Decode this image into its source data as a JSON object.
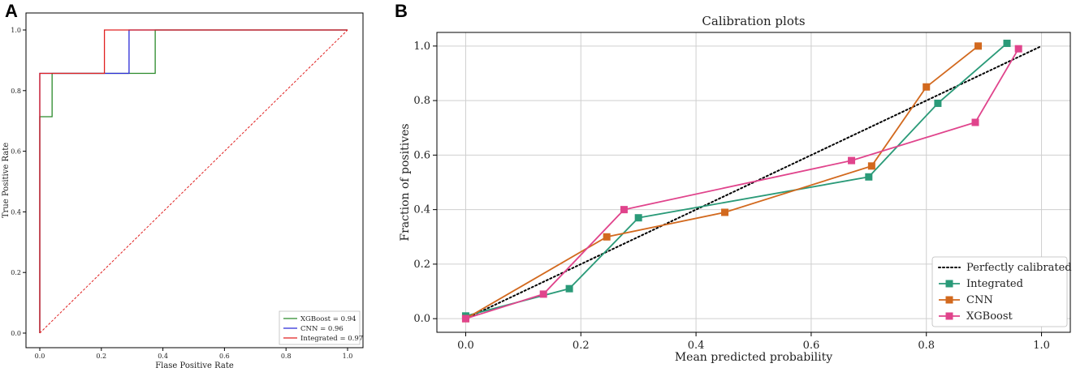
{
  "panels": {
    "a": "A",
    "b": "B"
  },
  "chart_data": [
    {
      "type": "line",
      "panel": "A",
      "title": "",
      "xlabel": "Flase Positive Rate",
      "ylabel": "True Positive Rate",
      "xlim": [
        0,
        1
      ],
      "ylim": [
        0,
        1
      ],
      "xticks": [
        "0.0",
        "0.2",
        "0.4",
        "0.6",
        "0.8",
        "1.0"
      ],
      "yticks": [
        "0.0",
        "0.2",
        "0.4",
        "0.6",
        "0.8",
        "1.0"
      ],
      "grid": false,
      "legend_position": "bottom-right",
      "series": [
        {
          "name": "XGBoost",
          "label": "XGBoost = 0.94",
          "color": "#2a8a2a",
          "x": [
            0,
            0,
            0,
            0.04,
            0.04,
            0.375,
            0.375,
            1.0
          ],
          "y": [
            0,
            0.714,
            0.714,
            0.714,
            0.857,
            0.857,
            1.0,
            1.0
          ]
        },
        {
          "name": "CNN",
          "label": "CNN = 0.96",
          "color": "#2a2ad6",
          "x": [
            0,
            0,
            0.29,
            0.29,
            1.0
          ],
          "y": [
            0,
            0.857,
            0.857,
            1.0,
            1.0
          ]
        },
        {
          "name": "Integrated",
          "label": "Integrated = 0.97",
          "color": "#e02020",
          "x": [
            0,
            0,
            0.21,
            0.21,
            1.0
          ],
          "y": [
            0,
            0.857,
            0.857,
            1.0,
            1.0
          ]
        },
        {
          "name": "Chance",
          "label": "",
          "color": "#e02020",
          "dashed": true,
          "x": [
            0,
            1
          ],
          "y": [
            0,
            1
          ]
        }
      ]
    },
    {
      "type": "line",
      "panel": "B",
      "title": "Calibration plots",
      "xlabel": "Mean predicted probability",
      "ylabel": "Fraction of positives",
      "xlim": [
        -0.05,
        1.05
      ],
      "ylim": [
        -0.05,
        1.05
      ],
      "xticks": [
        "0.0",
        "0.2",
        "0.4",
        "0.6",
        "0.8",
        "1.0"
      ],
      "yticks": [
        "0.0",
        "0.2",
        "0.4",
        "0.6",
        "0.8",
        "1.0"
      ],
      "grid": true,
      "legend_position": "bottom-right",
      "reference": {
        "name": "Perfectly calibrated",
        "color": "#000000",
        "x": [
          0,
          1
        ],
        "y": [
          0,
          1
        ]
      },
      "series": [
        {
          "name": "Integrated",
          "color": "#2a9a78",
          "x": [
            0.0,
            0.18,
            0.3,
            0.7,
            0.82,
            0.94
          ],
          "y": [
            0.01,
            0.11,
            0.37,
            0.52,
            0.79,
            1.01
          ]
        },
        {
          "name": "CNN",
          "color": "#d2691e",
          "x": [
            0.0,
            0.245,
            0.45,
            0.705,
            0.8,
            0.89
          ],
          "y": [
            0.0,
            0.3,
            0.39,
            0.56,
            0.85,
            1.0
          ]
        },
        {
          "name": "XGBoost",
          "color": "#e0448c",
          "x": [
            0.0,
            0.135,
            0.275,
            0.67,
            0.885,
            0.96
          ],
          "y": [
            0.0,
            0.09,
            0.4,
            0.58,
            0.72,
            0.99
          ]
        }
      ]
    }
  ]
}
